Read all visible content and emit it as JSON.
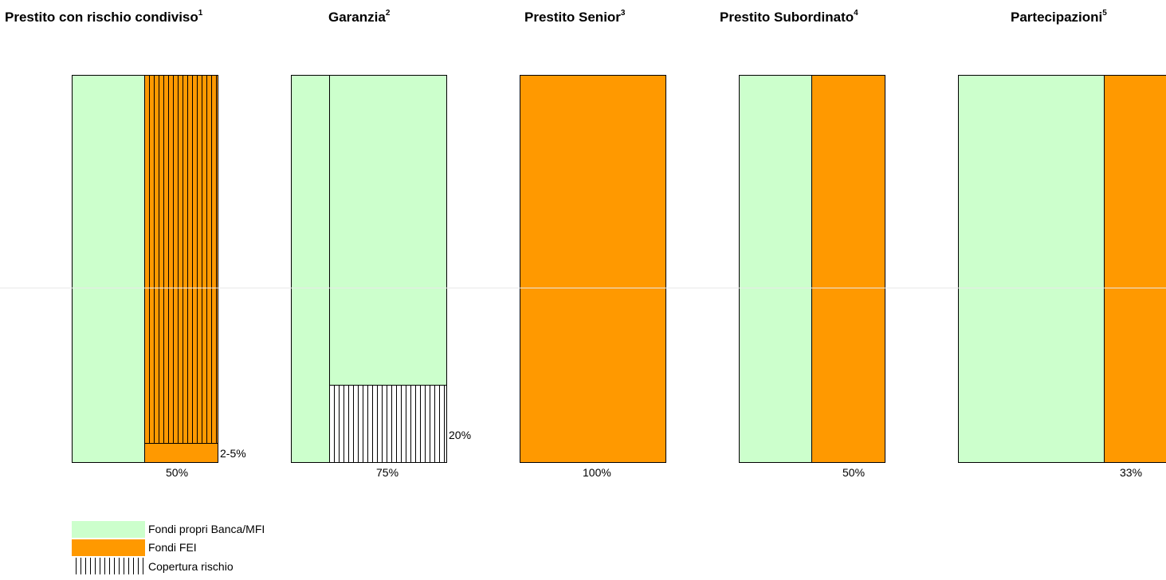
{
  "colors": {
    "own_funds": "#ccffcc",
    "eif_funds": "#ff9900",
    "risk_coverage_pattern": "vertical-hatch"
  },
  "panels": [
    {
      "title": "Prestito con rischio condiviso",
      "footnote": "1",
      "bottom_label": "50%",
      "side_label": "2-5%"
    },
    {
      "title": "Garanzia",
      "footnote": "2",
      "bottom_label": "75%",
      "side_label": "20%"
    },
    {
      "title": "Prestito Senior",
      "footnote": "3",
      "bottom_label": "100%"
    },
    {
      "title": "Prestito Subordinato",
      "footnote": "4",
      "bottom_label": "50%"
    },
    {
      "title": "Partecipazioni",
      "footnote": "5",
      "bottom_label": "33%"
    }
  ],
  "legend": {
    "items": [
      {
        "label": "Fondi propri Banca/MFI",
        "type": "green"
      },
      {
        "label": "Fondi FEI",
        "type": "orange"
      },
      {
        "label": "Copertura rischio",
        "type": "hatch"
      }
    ]
  }
}
